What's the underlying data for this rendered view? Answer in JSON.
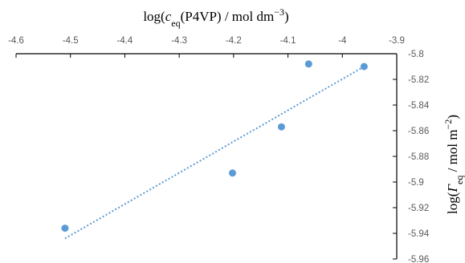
{
  "chart_data": {
    "type": "scatter",
    "title": "",
    "xlabel": {
      "prefix": "log(",
      "symbol": "c",
      "subscript": "eq",
      "rest": "(P4VP) / mol dm",
      "sup": "−3",
      "end": ")"
    },
    "ylabel": {
      "prefix": "log(",
      "symbol": "Γ",
      "subscript": "eq",
      "rest": " / mol m",
      "sup": "−2",
      "end": ")"
    },
    "xlim": [
      -4.6,
      -3.9
    ],
    "ylim": [
      -5.96,
      -5.8
    ],
    "x_ticks": [
      -4.6,
      -4.5,
      -4.4,
      -4.3,
      -4.2,
      -4.1,
      -4.0,
      -3.9
    ],
    "x_tick_labels": [
      "-4.6",
      "-4.5",
      "-4.4",
      "-4.3",
      "-4.2",
      "-4.1",
      "-4",
      "-3.9"
    ],
    "y_ticks": [
      -5.8,
      -5.82,
      -5.84,
      -5.86,
      -5.88,
      -5.9,
      -5.92,
      -5.94,
      -5.96
    ],
    "y_tick_labels": [
      "-5.8",
      "-5.82",
      "-5.84",
      "-5.86",
      "-5.88",
      "-5.9",
      "-5.92",
      "-5.94",
      "-5.96"
    ],
    "x_axis_position": "top",
    "y_axis_position": "right",
    "grid": false,
    "legend": "none",
    "color": "#5b9bd5",
    "points": [
      {
        "x": -4.51,
        "y": -5.936
      },
      {
        "x": -4.202,
        "y": -5.893
      },
      {
        "x": -4.112,
        "y": -5.857
      },
      {
        "x": -4.062,
        "y": -5.808
      },
      {
        "x": -3.96,
        "y": -5.81
      }
    ],
    "trendline": {
      "type": "linear",
      "x": [
        -4.51,
        -3.96
      ],
      "y": [
        -5.944,
        -5.81
      ],
      "style": "dotted"
    }
  }
}
